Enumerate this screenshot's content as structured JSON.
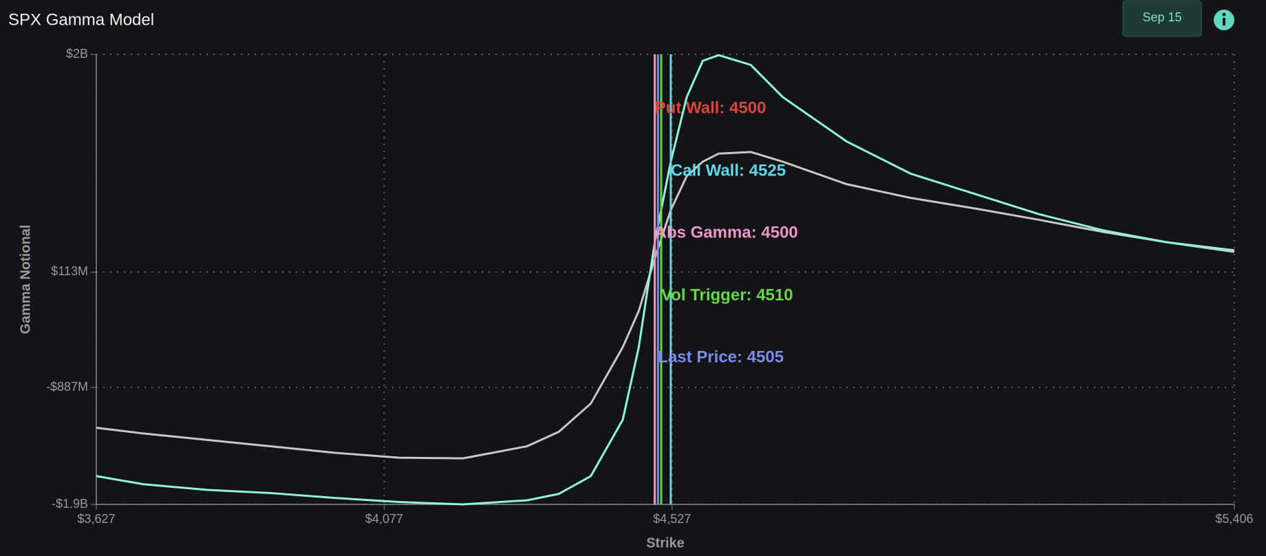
{
  "header": {
    "title": "SPX Gamma Model",
    "date_button": "Sep 15"
  },
  "chart_data": {
    "type": "line",
    "x_label": "Strike",
    "y_label": "Gamma Notional",
    "x": [
      3627,
      3700,
      3800,
      3900,
      4000,
      4100,
      4200,
      4300,
      4350,
      4400,
      4450,
      4475,
      4500,
      4525,
      4550,
      4575,
      4600,
      4650,
      4700,
      4800,
      4900,
      5000,
      5100,
      5200,
      5300,
      5406
    ],
    "series": [
      {
        "color": "#c8c8c8",
        "values": [
          -1236000000,
          -1285000000,
          -1341000000,
          -1397000000,
          -1453000000,
          -1495000000,
          -1501000000,
          -1397000000,
          -1271000000,
          -1026000000,
          -537000000,
          -223000000,
          232000000,
          651000000,
          945000000,
          1070000000,
          1140000000,
          1154000000,
          1070000000,
          875000000,
          756000000,
          665000000,
          567000000,
          462000000,
          372000000,
          288000000
        ]
      },
      {
        "color": "#8ff5dc",
        "values": [
          -1655000000,
          -1725000000,
          -1774000000,
          -1802000000,
          -1844000000,
          -1879000000,
          -1900000000,
          -1865000000,
          -1809000000,
          -1655000000,
          -1166000000,
          -537000000,
          372000000,
          1070000000,
          1630000000,
          1944000000,
          1993000000,
          1909000000,
          1630000000,
          1245000000,
          966000000,
          791000000,
          616000000,
          476000000,
          372000000,
          302000000
        ]
      }
    ],
    "xlim": [
      3627,
      5406
    ],
    "xticks": [
      {
        "value": 3627,
        "label": "$3,627"
      },
      {
        "value": 4077,
        "label": "$4,077"
      },
      {
        "value": 4527,
        "label": "$4,527"
      },
      {
        "value": 5406,
        "label": "$5,406"
      }
    ],
    "ylim": [
      -1900000000,
      2000000000
    ],
    "yticks": [
      {
        "value": -1900000000,
        "label": "-$1.9B"
      },
      {
        "value": -887000000,
        "label": "-$887M"
      },
      {
        "value": 113000000,
        "label": "$113M"
      },
      {
        "value": 2000000000,
        "label": "$2B"
      }
    ],
    "grid": true,
    "levels": [
      {
        "label": "Put Wall: 4500",
        "value": 4500,
        "color": "#d9453b"
      },
      {
        "label": "Call Wall: 4525",
        "value": 4525,
        "color": "#5fd8e8"
      },
      {
        "label": "Abs Gamma: 4500",
        "value": 4500,
        "color": "#ee95c5"
      },
      {
        "label": "Vol Trigger: 4510",
        "value": 4510,
        "color": "#6ad64a"
      },
      {
        "label": "Last Price: 4505",
        "value": 4505,
        "color": "#7f8ae6"
      }
    ]
  }
}
